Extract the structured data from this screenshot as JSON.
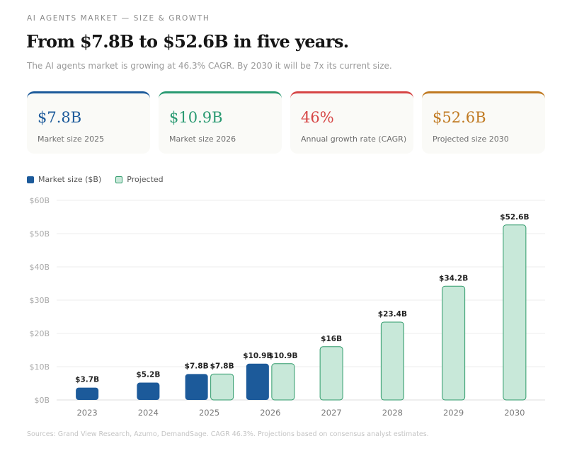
{
  "header": {
    "eyebrow": "AI AGENTS MARKET — SIZE & GROWTH",
    "title": "From $7.8B to $52.6B in five years.",
    "subtitle": "The AI agents market is growing at 46.3% CAGR. By 2030 it will be 7x its current size."
  },
  "cards": [
    {
      "value": "$7.8B",
      "label": "Market size 2025",
      "color": "#1c5a9a"
    },
    {
      "value": "$10.9B",
      "label": "Market size 2026",
      "color": "#2a9a72"
    },
    {
      "value": "46%",
      "label": "Annual growth rate (CAGR)",
      "color": "#d64545"
    },
    {
      "value": "$52.6B",
      "label": "Projected size 2030",
      "color": "#c07a22"
    }
  ],
  "legend": {
    "actual": "Market size ($B)",
    "projected": "Projected"
  },
  "colors": {
    "actual": "#1c5a9a",
    "projected_fill": "#c8e8d9",
    "projected_stroke": "#2e9a6a"
  },
  "chart_data": {
    "type": "bar",
    "categories": [
      "2023",
      "2024",
      "2025",
      "2026",
      "2027",
      "2028",
      "2029",
      "2030"
    ],
    "series": [
      {
        "name": "Market size ($B)",
        "values": [
          3.7,
          5.2,
          7.8,
          10.9,
          null,
          null,
          null,
          null
        ]
      },
      {
        "name": "Projected",
        "values": [
          null,
          null,
          7.8,
          10.9,
          16,
          23.4,
          34.2,
          52.6
        ]
      }
    ],
    "data_labels": {
      "actual": [
        "$3.7B",
        "$5.2B",
        "$7.8B",
        "$10.9B",
        "",
        "",
        "",
        ""
      ],
      "projected": [
        "",
        "",
        "$7.8B",
        "$10.9B",
        "$16B",
        "$23.4B",
        "$34.2B",
        "$52.6B"
      ]
    },
    "y_ticks": [
      0,
      10,
      20,
      30,
      40,
      50,
      60
    ],
    "y_tick_labels": [
      "$0B",
      "$10B",
      "$20B",
      "$30B",
      "$40B",
      "$50B",
      "$60B"
    ],
    "ylim": [
      0,
      60
    ],
    "grid": true,
    "legend_position": "top-left"
  },
  "sources": "Sources: Grand View Research, Azumo, DemandSage. CAGR 46.3%. Projections based on consensus analyst estimates."
}
